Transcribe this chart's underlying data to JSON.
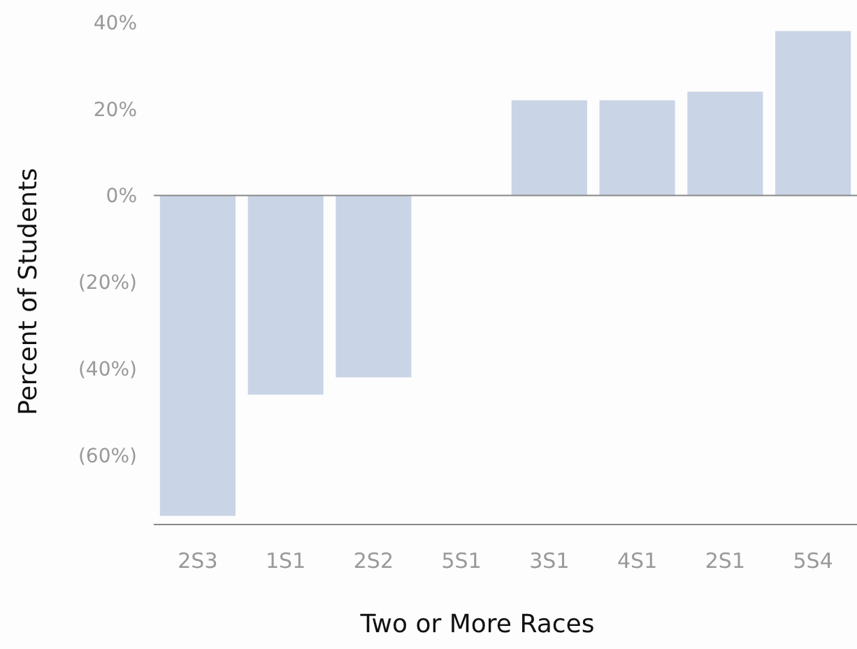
{
  "chart_data": {
    "type": "bar",
    "xlabel": "Two or More Races",
    "ylabel": "Percent of Students",
    "categories": [
      "2S3",
      "1S1",
      "2S2",
      "5S1",
      "3S1",
      "4S1",
      "2S1",
      "5S4"
    ],
    "values": [
      -74,
      -46,
      -42,
      0,
      22,
      22,
      24,
      38
    ],
    "color": "#c9d5e6",
    "ylim": [
      -76,
      40
    ],
    "yticks": [
      {
        "value": -60,
        "label": "(60%)"
      },
      {
        "value": -40,
        "label": "(40%)"
      },
      {
        "value": -20,
        "label": "(20%)"
      },
      {
        "value": 0,
        "label": "0%"
      },
      {
        "value": 20,
        "label": "20%"
      },
      {
        "value": 40,
        "label": "40%"
      }
    ],
    "ref_lines": [
      {
        "axis": "y",
        "value": 0,
        "color": "#888888"
      }
    ]
  }
}
